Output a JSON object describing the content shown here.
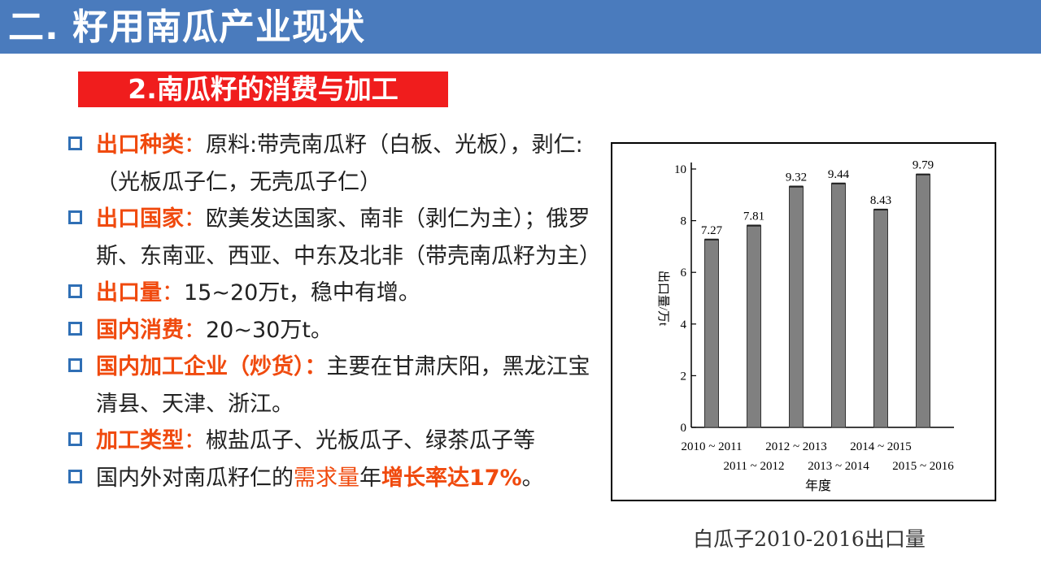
{
  "header": {
    "title": "二. 籽用南瓜产业现状"
  },
  "section": {
    "subtitle": "2.南瓜籽的消费与加工"
  },
  "bullets": [
    {
      "key": "出口种类",
      "sep": "：",
      "text": "原料:带壳南瓜籽（白板、光板），剥仁:（光板瓜子仁，无壳瓜子仁）"
    },
    {
      "key": "出口国家",
      "sep": "：",
      "text": "欧美发达国家、南非（剥仁为主）；俄罗斯、东南亚、西亚、中东及北非（带壳南瓜籽为主）"
    },
    {
      "key": "出口量",
      "sep": "：",
      "text": "15~20万t，稳中有增。"
    },
    {
      "key": "国内消费",
      "sep": "：",
      "text": "20~30万t。"
    },
    {
      "key": "国内加工企业（炒货）：",
      "sep": "",
      "text": "主要在甘肃庆阳，黑龙江宝清县、天津、浙江。"
    },
    {
      "key": "加工类型",
      "sep": "：",
      "text": "椒盐瓜子、光板瓜子、绿茶瓜子等"
    },
    {
      "pre": "国内外对南瓜籽仁的",
      "mid": "需求量",
      "mid2": "年",
      "bold": "增长率达17%",
      "end": "。"
    }
  ],
  "colors": {
    "header_bg": "#4a7bbd",
    "subtitle_bg": "#f01d1d",
    "highlight": "#f04a0e",
    "bullet_border": "#2f6fb5",
    "bar_fill": "#808080"
  },
  "chart_data": {
    "type": "bar",
    "categories": [
      "2010 ~ 2011",
      "2011 ~ 2012",
      "2012 ~ 2013",
      "2013 ~ 2014",
      "2014 ~ 2015",
      "2015 ~ 2016"
    ],
    "values": [
      7.27,
      7.81,
      9.32,
      9.44,
      8.43,
      9.79
    ],
    "value_labels": [
      "7.27",
      "7.81",
      "9.32",
      "9.44",
      "8.43",
      "9.79"
    ],
    "xlabel": "年度",
    "ylabel": "出口量/万t",
    "ylim": [
      0,
      10
    ],
    "yticks": [
      0,
      2,
      4,
      6,
      8,
      10
    ],
    "grid": false
  },
  "caption": "白瓜子2010-2016出口量"
}
